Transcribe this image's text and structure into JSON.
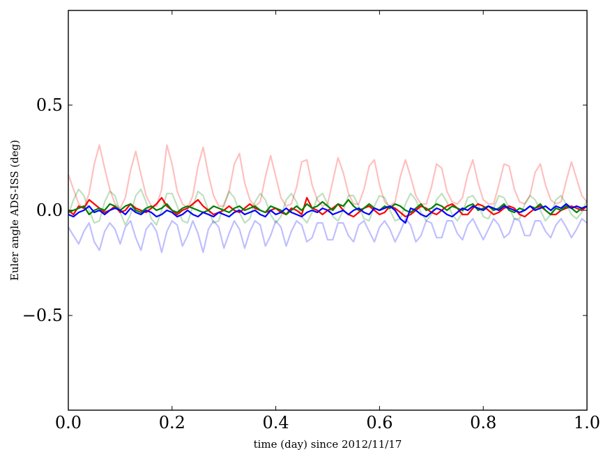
{
  "chart_data": {
    "type": "line",
    "xlabel": "time (day) since 2012/11/17",
    "ylabel": "Euler angle ADS-ISS (deg)",
    "xlim": [
      0.0,
      1.0
    ],
    "ylim": [
      -0.95,
      0.95
    ],
    "x_ticks": [
      "0.0",
      "0.2",
      "0.4",
      "0.6",
      "0.8",
      "1.0"
    ],
    "x_tick_values": [
      0.0,
      0.2,
      0.4,
      0.6,
      0.8,
      1.0
    ],
    "y_ticks": [
      "0.5",
      "0.0",
      "−0.5"
    ],
    "y_tick_values": [
      0.5,
      0.0,
      -0.5
    ],
    "grid": false,
    "legend": "none",
    "x": [
      0.0,
      0.01,
      0.02,
      0.03,
      0.04,
      0.05,
      0.06,
      0.07,
      0.08,
      0.09,
      0.1,
      0.11,
      0.12,
      0.13,
      0.14,
      0.15,
      0.16,
      0.17,
      0.18,
      0.19,
      0.2,
      0.21,
      0.22,
      0.23,
      0.24,
      0.25,
      0.26,
      0.27,
      0.28,
      0.29,
      0.3,
      0.31,
      0.32,
      0.33,
      0.34,
      0.35,
      0.36,
      0.37,
      0.38,
      0.39,
      0.4,
      0.41,
      0.42,
      0.43,
      0.44,
      0.45,
      0.46,
      0.47,
      0.48,
      0.49,
      0.5,
      0.51,
      0.52,
      0.53,
      0.54,
      0.55,
      0.56,
      0.57,
      0.58,
      0.59,
      0.6,
      0.61,
      0.62,
      0.63,
      0.64,
      0.65,
      0.66,
      0.67,
      0.68,
      0.69,
      0.7,
      0.71,
      0.72,
      0.73,
      0.74,
      0.75,
      0.76,
      0.77,
      0.78,
      0.79,
      0.8,
      0.81,
      0.82,
      0.83,
      0.84,
      0.85,
      0.86,
      0.87,
      0.88,
      0.89,
      0.9,
      0.91,
      0.92,
      0.93,
      0.94,
      0.95,
      0.96,
      0.97,
      0.98,
      0.99,
      1.0
    ],
    "series": [
      {
        "color": "#ff0000",
        "alpha": 0.25,
        "values": [
          0.17,
          0.1,
          0.03,
          0.01,
          0.08,
          0.22,
          0.31,
          0.2,
          0.1,
          0.03,
          0.01,
          0.06,
          0.19,
          0.28,
          0.17,
          0.07,
          0.02,
          0.02,
          0.1,
          0.31,
          0.22,
          0.09,
          0.03,
          0.01,
          0.07,
          0.21,
          0.3,
          0.17,
          0.07,
          0.02,
          0.02,
          0.09,
          0.22,
          0.27,
          0.13,
          0.05,
          0.02,
          0.04,
          0.16,
          0.26,
          0.16,
          0.06,
          0.02,
          0.03,
          0.11,
          0.23,
          0.24,
          0.12,
          0.05,
          0.02,
          0.03,
          0.14,
          0.25,
          0.18,
          0.08,
          0.03,
          0.03,
          0.1,
          0.21,
          0.24,
          0.12,
          0.04,
          0.02,
          0.04,
          0.16,
          0.24,
          0.16,
          0.07,
          0.03,
          0.03,
          0.11,
          0.22,
          0.2,
          0.09,
          0.04,
          0.03,
          0.06,
          0.17,
          0.24,
          0.13,
          0.05,
          0.03,
          0.03,
          0.12,
          0.22,
          0.21,
          0.1,
          0.04,
          0.03,
          0.07,
          0.18,
          0.22,
          0.12,
          0.05,
          0.03,
          0.04,
          0.14,
          0.23,
          0.15,
          0.07,
          0.04
        ]
      },
      {
        "color": "#008000",
        "alpha": 0.25,
        "values": [
          -0.02,
          0.05,
          0.1,
          0.07,
          0.0,
          -0.06,
          -0.05,
          0.04,
          0.09,
          0.07,
          -0.01,
          -0.07,
          -0.02,
          0.07,
          0.1,
          0.04,
          -0.04,
          -0.07,
          0.0,
          0.08,
          0.08,
          0.02,
          -0.05,
          -0.06,
          0.02,
          0.09,
          0.07,
          0.0,
          -0.06,
          -0.05,
          0.03,
          0.09,
          0.06,
          -0.01,
          -0.06,
          -0.04,
          0.04,
          0.08,
          0.05,
          -0.02,
          -0.06,
          -0.03,
          0.05,
          0.08,
          0.04,
          -0.03,
          -0.06,
          -0.01,
          0.06,
          0.08,
          0.03,
          -0.03,
          -0.05,
          0.0,
          0.07,
          0.07,
          0.02,
          -0.04,
          -0.05,
          0.02,
          0.07,
          0.06,
          0.0,
          -0.05,
          -0.04,
          0.03,
          0.08,
          0.05,
          -0.01,
          -0.05,
          -0.02,
          0.05,
          0.08,
          0.04,
          -0.02,
          -0.05,
          -0.01,
          0.06,
          0.07,
          0.03,
          -0.03,
          -0.04,
          0.01,
          0.07,
          0.06,
          0.01,
          -0.04,
          -0.04,
          0.03,
          0.07,
          0.05,
          0.0,
          -0.05,
          -0.02,
          0.05,
          0.07,
          0.03,
          -0.02,
          -0.04,
          -0.01,
          0.05
        ]
      },
      {
        "color": "#0000ff",
        "alpha": 0.25,
        "values": [
          -0.08,
          -0.12,
          -0.16,
          -0.1,
          -0.06,
          -0.15,
          -0.19,
          -0.1,
          -0.06,
          -0.09,
          -0.16,
          -0.08,
          -0.05,
          -0.13,
          -0.19,
          -0.09,
          -0.06,
          -0.1,
          -0.2,
          -0.1,
          -0.05,
          -0.07,
          -0.17,
          -0.12,
          -0.05,
          -0.11,
          -0.2,
          -0.09,
          -0.05,
          -0.08,
          -0.18,
          -0.11,
          -0.05,
          -0.09,
          -0.18,
          -0.1,
          -0.05,
          -0.07,
          -0.17,
          -0.12,
          -0.05,
          -0.08,
          -0.17,
          -0.1,
          -0.05,
          -0.07,
          -0.15,
          -0.13,
          -0.06,
          -0.06,
          -0.14,
          -0.14,
          -0.06,
          -0.06,
          -0.12,
          -0.15,
          -0.07,
          -0.05,
          -0.1,
          -0.15,
          -0.08,
          -0.05,
          -0.09,
          -0.15,
          -0.1,
          -0.04,
          -0.07,
          -0.15,
          -0.12,
          -0.05,
          -0.06,
          -0.13,
          -0.13,
          -0.05,
          -0.05,
          -0.11,
          -0.14,
          -0.07,
          -0.04,
          -0.09,
          -0.14,
          -0.09,
          -0.04,
          -0.07,
          -0.13,
          -0.11,
          -0.04,
          -0.05,
          -0.12,
          -0.12,
          -0.05,
          -0.05,
          -0.1,
          -0.13,
          -0.07,
          -0.04,
          -0.08,
          -0.13,
          -0.09,
          -0.04,
          -0.06
        ]
      },
      {
        "color": "#ff0000",
        "alpha": 1.0,
        "values": [
          0.0,
          -0.02,
          0.02,
          0.01,
          0.05,
          0.03,
          0.01,
          -0.01,
          0.0,
          0.02,
          -0.01,
          0.0,
          0.03,
          0.01,
          0.0,
          -0.01,
          0.01,
          0.03,
          0.06,
          0.02,
          0.0,
          -0.02,
          0.0,
          0.01,
          0.03,
          0.05,
          0.02,
          0.0,
          -0.02,
          -0.01,
          0.0,
          0.02,
          0.0,
          -0.01,
          0.01,
          0.03,
          0.01,
          0.0,
          -0.01,
          0.0,
          0.01,
          -0.01,
          -0.02,
          0.01,
          0.0,
          -0.02,
          0.06,
          0.01,
          0.0,
          -0.02,
          0.0,
          0.01,
          0.03,
          0.0,
          -0.02,
          -0.03,
          -0.01,
          0.01,
          0.02,
          0.0,
          -0.02,
          -0.01,
          0.02,
          0.01,
          -0.01,
          -0.03,
          -0.02,
          0.0,
          0.02,
          0.01,
          -0.01,
          -0.02,
          0.0,
          0.02,
          0.03,
          0.01,
          -0.02,
          -0.02,
          0.01,
          0.03,
          0.02,
          0.0,
          -0.02,
          -0.01,
          0.01,
          0.02,
          0.01,
          -0.02,
          -0.03,
          -0.01,
          0.01,
          0.02,
          0.0,
          -0.02,
          -0.02,
          0.0,
          0.01,
          0.02,
          0.01,
          0.0,
          0.02
        ]
      },
      {
        "color": "#008000",
        "alpha": 1.0,
        "values": [
          -0.01,
          0.0,
          0.01,
          0.02,
          -0.02,
          0.0,
          0.01,
          0.0,
          0.03,
          0.02,
          0.0,
          0.02,
          0.03,
          0.0,
          -0.01,
          0.01,
          0.02,
          0.0,
          0.01,
          0.03,
          0.0,
          -0.01,
          0.01,
          0.02,
          0.01,
          0.0,
          -0.01,
          0.0,
          0.02,
          0.01,
          0.0,
          -0.01,
          0.01,
          0.02,
          0.0,
          0.01,
          0.02,
          0.0,
          -0.01,
          0.02,
          0.01,
          0.0,
          -0.02,
          0.0,
          0.02,
          0.0,
          0.03,
          0.01,
          0.02,
          0.04,
          0.02,
          0.0,
          0.03,
          0.02,
          0.05,
          0.02,
          0.0,
          0.01,
          0.03,
          0.01,
          0.0,
          0.02,
          0.01,
          0.03,
          0.02,
          0.0,
          -0.01,
          0.01,
          0.03,
          0.0,
          0.01,
          0.03,
          0.02,
          0.0,
          0.02,
          0.01,
          0.0,
          0.02,
          0.03,
          0.0,
          0.01,
          0.02,
          0.0,
          0.01,
          0.03,
          0.0,
          -0.01,
          0.01,
          0.0,
          0.02,
          0.01,
          0.03,
          0.0,
          -0.02,
          0.01,
          0.0,
          0.02,
          0.01,
          -0.01,
          0.01,
          0.02
        ]
      },
      {
        "color": "#0000ff",
        "alpha": 1.0,
        "values": [
          -0.02,
          -0.03,
          -0.01,
          0.0,
          0.02,
          -0.01,
          0.0,
          -0.02,
          0.0,
          0.01,
          0.0,
          -0.02,
          0.01,
          -0.01,
          -0.02,
          0.0,
          -0.01,
          -0.03,
          -0.02,
          0.0,
          -0.01,
          -0.03,
          -0.02,
          0.0,
          -0.02,
          -0.03,
          -0.01,
          -0.02,
          -0.03,
          -0.01,
          -0.02,
          -0.03,
          -0.01,
          0.0,
          -0.02,
          -0.01,
          0.0,
          -0.02,
          -0.03,
          0.0,
          -0.02,
          -0.01,
          0.01,
          -0.01,
          -0.02,
          -0.03,
          -0.01,
          0.0,
          -0.01,
          0.01,
          0.0,
          -0.02,
          -0.01,
          0.0,
          -0.02,
          0.0,
          0.01,
          -0.01,
          -0.02,
          0.01,
          0.0,
          0.01,
          0.02,
          0.0,
          -0.04,
          -0.06,
          0.01,
          0.0,
          -0.02,
          -0.03,
          -0.01,
          0.01,
          0.0,
          -0.02,
          -0.03,
          -0.01,
          0.01,
          0.0,
          0.02,
          0.01,
          0.0,
          0.02,
          0.01,
          0.0,
          0.02,
          0.01,
          0.0,
          -0.01,
          0.0,
          0.02,
          0.0,
          0.01,
          0.02,
          0.0,
          0.02,
          0.01,
          0.03,
          0.01,
          0.02,
          0.01,
          0.02
        ]
      }
    ]
  }
}
